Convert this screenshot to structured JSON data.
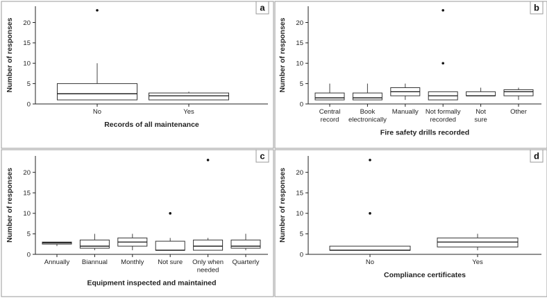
{
  "panel_letters": [
    "a",
    "b",
    "c",
    "d"
  ],
  "chart_data": [
    {
      "type": "box",
      "panel": "a",
      "xlabel": "Records of all maintenance",
      "ylabel": "Number of responses",
      "ylim": [
        0,
        24
      ],
      "yticks": [
        0,
        5,
        10,
        15,
        20
      ],
      "grid": false,
      "categories": [
        [
          "No"
        ],
        [
          "Yes"
        ]
      ],
      "boxes": [
        {
          "q1": 1,
          "median": 2.5,
          "q3": 5,
          "whisker_low": 1,
          "whisker_high": 10,
          "outliers": [
            23
          ]
        },
        {
          "q1": 1,
          "median": 2,
          "q3": 2.7,
          "whisker_low": 1,
          "whisker_high": 3,
          "outliers": []
        }
      ]
    },
    {
      "type": "box",
      "panel": "b",
      "xlabel": "Fire safety drills recorded",
      "ylabel": "Number of responses",
      "ylim": [
        0,
        24
      ],
      "yticks": [
        0,
        5,
        10,
        15,
        20
      ],
      "grid": false,
      "categories": [
        [
          "Central",
          "record"
        ],
        [
          "Book",
          "electronically"
        ],
        [
          "Manually"
        ],
        [
          "Not formally",
          "recorded"
        ],
        [
          "Not",
          "sure"
        ],
        [
          "Other"
        ]
      ],
      "boxes": [
        {
          "q1": 1,
          "median": 1.5,
          "q3": 2.7,
          "whisker_low": 1,
          "whisker_high": 5,
          "outliers": []
        },
        {
          "q1": 1,
          "median": 1.5,
          "q3": 2.7,
          "whisker_low": 1,
          "whisker_high": 5,
          "outliers": []
        },
        {
          "q1": 2,
          "median": 3,
          "q3": 4,
          "whisker_low": 1,
          "whisker_high": 5,
          "outliers": []
        },
        {
          "q1": 1,
          "median": 2,
          "q3": 3,
          "whisker_low": 1,
          "whisker_high": 3,
          "outliers": [
            10,
            23
          ]
        },
        {
          "q1": 2,
          "median": 2,
          "q3": 3,
          "whisker_low": 2,
          "whisker_high": 4,
          "outliers": []
        },
        {
          "q1": 2,
          "median": 3,
          "q3": 3.5,
          "whisker_low": 1,
          "whisker_high": 4,
          "outliers": []
        }
      ]
    },
    {
      "type": "box",
      "panel": "c",
      "xlabel": "Equipment inspected and maintained",
      "ylabel": "Number of responses",
      "ylim": [
        0,
        24
      ],
      "yticks": [
        0,
        5,
        10,
        15,
        20
      ],
      "grid": false,
      "categories": [
        [
          "Annually"
        ],
        [
          "Biannual"
        ],
        [
          "Monthly"
        ],
        [
          "Not sure"
        ],
        [
          "Only when",
          "needed"
        ],
        [
          "Quarterly"
        ]
      ],
      "boxes": [
        {
          "q1": 2.5,
          "median": 2.8,
          "q3": 3,
          "whisker_low": 2,
          "whisker_high": 3,
          "outliers": []
        },
        {
          "q1": 1.5,
          "median": 2,
          "q3": 3.5,
          "whisker_low": 1,
          "whisker_high": 5,
          "outliers": []
        },
        {
          "q1": 2,
          "median": 3,
          "q3": 4,
          "whisker_low": 1,
          "whisker_high": 5,
          "outliers": []
        },
        {
          "q1": 1,
          "median": 1,
          "q3": 3.2,
          "whisker_low": 1,
          "whisker_high": 4,
          "outliers": [
            10
          ]
        },
        {
          "q1": 1,
          "median": 2,
          "q3": 3.5,
          "whisker_low": 1,
          "whisker_high": 4,
          "outliers": [
            23
          ]
        },
        {
          "q1": 1.5,
          "median": 2,
          "q3": 3.5,
          "whisker_low": 1,
          "whisker_high": 5,
          "outliers": []
        }
      ]
    },
    {
      "type": "box",
      "panel": "d",
      "xlabel": "Compliance certificates",
      "ylabel": "Number of responses",
      "ylim": [
        0,
        24
      ],
      "yticks": [
        0,
        5,
        10,
        15,
        20
      ],
      "grid": false,
      "categories": [
        [
          "No"
        ],
        [
          "Yes"
        ]
      ],
      "boxes": [
        {
          "q1": 1,
          "median": 1,
          "q3": 2,
          "whisker_low": 1,
          "whisker_high": 2,
          "outliers": [
            10,
            23
          ]
        },
        {
          "q1": 1.8,
          "median": 3,
          "q3": 4,
          "whisker_low": 1,
          "whisker_high": 5,
          "outliers": []
        }
      ]
    }
  ]
}
